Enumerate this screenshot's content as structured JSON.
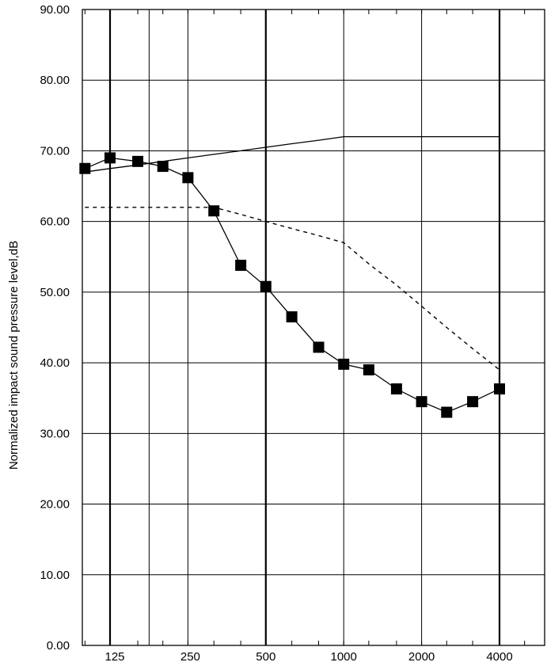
{
  "chart_data": {
    "type": "line",
    "title": "",
    "xlabel": "",
    "ylabel": "Normalized impact sound pressure level,dB",
    "x_scale": "log",
    "x_tick_labels": [
      "125",
      "250",
      "500",
      "1000",
      "2000",
      "4000"
    ],
    "x_ticks": [
      125,
      250,
      500,
      1000,
      2000,
      4000
    ],
    "y_tick_labels": [
      "0.00",
      "10.00",
      "20.00",
      "30.00",
      "40.00",
      "50.00",
      "60.00",
      "70.00",
      "80.00",
      "90.00"
    ],
    "y_ticks": [
      0,
      10,
      20,
      30,
      40,
      50,
      60,
      70,
      80,
      90
    ],
    "ylim": [
      0,
      90
    ],
    "grid": true,
    "legend": "none",
    "series": [
      {
        "style": "solid-with-square-markers",
        "color": "#000000",
        "x": [
          100,
          125,
          160,
          200,
          250,
          315,
          400,
          500,
          630,
          800,
          1000,
          1250,
          1600,
          2000,
          2500,
          3150,
          4000
        ],
        "y": [
          67.5,
          69.0,
          68.5,
          67.8,
          66.2,
          61.5,
          53.8,
          50.8,
          46.5,
          42.2,
          39.8,
          39.0,
          36.3,
          34.5,
          33.0,
          34.5,
          36.3
        ]
      },
      {
        "style": "solid",
        "color": "#000000",
        "x": [
          100,
          125,
          160,
          200,
          250,
          315,
          400,
          500,
          630,
          800,
          1000,
          1250,
          1600,
          2000,
          2500,
          3150,
          4000
        ],
        "y": [
          67.0,
          67.5,
          68.0,
          68.5,
          69.0,
          69.5,
          70.0,
          70.5,
          71.0,
          71.5,
          72.0,
          72.0,
          72.0,
          72.0,
          72.0,
          72.0,
          72.0
        ]
      },
      {
        "style": "dashed",
        "color": "#000000",
        "x": [
          100,
          125,
          160,
          200,
          250,
          315,
          400,
          500,
          630,
          800,
          1000,
          1250,
          1600,
          2000,
          2500,
          3150,
          4000
        ],
        "y": [
          62.0,
          62.0,
          62.0,
          62.0,
          62.0,
          62.0,
          61.0,
          60.0,
          59.0,
          58.0,
          57.0,
          54.0,
          51.0,
          48.0,
          45.0,
          42.0,
          39.0
        ]
      }
    ]
  }
}
